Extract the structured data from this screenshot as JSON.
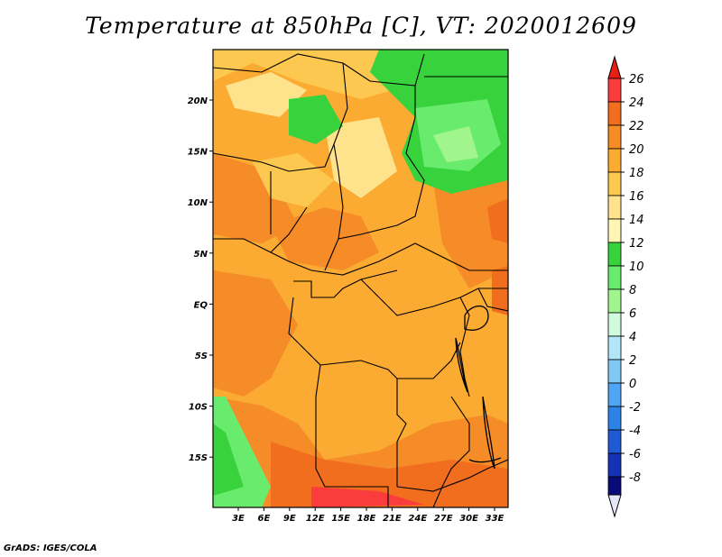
{
  "title": "Temperature at 850hPa [C], VT: 2020012609",
  "credit": "GrADS: IGES/COLA",
  "map": {
    "lon_labels": [
      "3E",
      "6E",
      "9E",
      "12E",
      "15E",
      "18E",
      "21E",
      "24E",
      "27E",
      "30E",
      "33E"
    ],
    "lat_labels": [
      "20N",
      "15N",
      "10N",
      "5N",
      "EQ",
      "5S",
      "10S",
      "15S"
    ]
  },
  "colorbar": {
    "labels": [
      "26",
      "24",
      "22",
      "20",
      "18",
      "16",
      "14",
      "12",
      "10",
      "8",
      "6",
      "4",
      "2",
      "0",
      "-2",
      "-4",
      "-6",
      "-8"
    ],
    "colors": [
      "#fa3c3c",
      "#f06e1e",
      "#f58c28",
      "#fbaa32",
      "#fcc850",
      "#fee28c",
      "#fff5b4",
      "#37d23c",
      "#69eb6e",
      "#a0f58c",
      "#d2fadc",
      "#b4e6fa",
      "#82c8f5",
      "#50a5f5",
      "#2d82e6",
      "#1e5ad2",
      "#1432b4",
      "#0a0a78"
    ],
    "top_color": "#e61e14",
    "bottom_color": "#e6e6fa"
  }
}
